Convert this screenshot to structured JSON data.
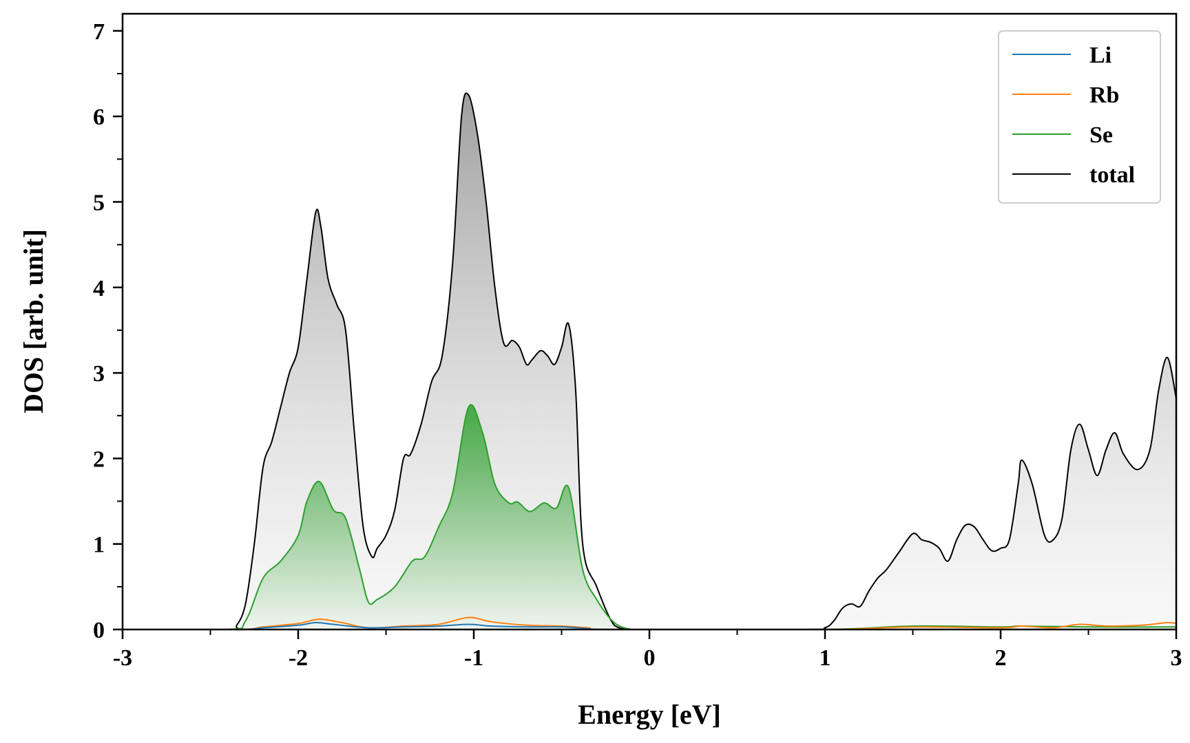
{
  "chart_data": {
    "type": "line",
    "xlabel": "Energy [eV]",
    "ylabel": "DOS [arb. unit]",
    "xlim": [
      -3,
      3
    ],
    "ylim": [
      0,
      7.2
    ],
    "xticks": [
      "-3",
      "-2",
      "-1",
      "0",
      "1",
      "2",
      "3"
    ],
    "yticks": [
      "0",
      "1",
      "2",
      "3",
      "4",
      "5",
      "6",
      "7"
    ],
    "grid": false,
    "legend_position": "top-right",
    "series": [
      {
        "name": "Li",
        "color": "#1f77b4",
        "filled": false,
        "x": [
          -3.0,
          -2.35,
          -2.2,
          -2.0,
          -1.9,
          -1.8,
          -1.6,
          -1.4,
          -1.2,
          -1.03,
          -0.9,
          -0.7,
          -0.5,
          -0.35,
          -0.2,
          1.0,
          3.0
        ],
        "y": [
          0,
          0,
          0.02,
          0.05,
          0.08,
          0.06,
          0.02,
          0.03,
          0.04,
          0.06,
          0.04,
          0.03,
          0.03,
          0.01,
          0,
          0,
          0
        ]
      },
      {
        "name": "Rb",
        "color": "#ff7f0e",
        "filled": false,
        "x": [
          -3.0,
          -2.35,
          -2.2,
          -2.0,
          -1.88,
          -1.75,
          -1.6,
          -1.4,
          -1.2,
          -1.03,
          -0.9,
          -0.7,
          -0.5,
          -0.35,
          -0.2,
          1.0,
          1.5,
          2.0,
          2.12,
          2.3,
          2.45,
          2.6,
          2.8,
          2.95,
          3.0
        ],
        "y": [
          0,
          0,
          0.03,
          0.07,
          0.12,
          0.08,
          0.02,
          0.04,
          0.06,
          0.14,
          0.09,
          0.05,
          0.04,
          0.02,
          0,
          0,
          0.03,
          0.02,
          0.04,
          0.02,
          0.06,
          0.04,
          0.05,
          0.08,
          0.07
        ]
      },
      {
        "name": "Se",
        "color": "#2ca02c",
        "filled": true,
        "x": [
          -3.0,
          -2.4,
          -2.3,
          -2.2,
          -2.1,
          -2.0,
          -1.95,
          -1.88,
          -1.8,
          -1.73,
          -1.65,
          -1.6,
          -1.55,
          -1.45,
          -1.35,
          -1.28,
          -1.2,
          -1.12,
          -1.03,
          -0.95,
          -0.88,
          -0.8,
          -0.75,
          -0.68,
          -0.6,
          -0.53,
          -0.46,
          -0.38,
          -0.3,
          -0.2,
          -0.1,
          0.0,
          1.0,
          1.5,
          2.0,
          2.12,
          2.5,
          3.0
        ],
        "y": [
          0,
          0,
          0.1,
          0.6,
          0.8,
          1.1,
          1.5,
          1.73,
          1.4,
          1.3,
          0.7,
          0.32,
          0.35,
          0.5,
          0.8,
          0.85,
          1.2,
          1.6,
          2.6,
          2.3,
          1.7,
          1.48,
          1.49,
          1.38,
          1.48,
          1.42,
          1.66,
          0.7,
          0.35,
          0.08,
          0,
          0,
          0,
          0.04,
          0.03,
          0.04,
          0.03,
          0.03
        ]
      },
      {
        "name": "total",
        "color": "#000000",
        "filled": true,
        "x": [
          -3.0,
          -2.4,
          -2.35,
          -2.3,
          -2.25,
          -2.2,
          -2.15,
          -2.1,
          -2.05,
          -2.0,
          -1.95,
          -1.9,
          -1.87,
          -1.83,
          -1.78,
          -1.73,
          -1.68,
          -1.63,
          -1.58,
          -1.55,
          -1.5,
          -1.45,
          -1.4,
          -1.36,
          -1.3,
          -1.24,
          -1.18,
          -1.12,
          -1.07,
          -1.03,
          -0.98,
          -0.93,
          -0.88,
          -0.83,
          -0.78,
          -0.74,
          -0.7,
          -0.67,
          -0.62,
          -0.58,
          -0.54,
          -0.5,
          -0.46,
          -0.42,
          -0.38,
          -0.3,
          -0.2,
          -0.1,
          0.0,
          0.9,
          1.0,
          1.05,
          1.1,
          1.15,
          1.2,
          1.25,
          1.3,
          1.35,
          1.42,
          1.5,
          1.55,
          1.6,
          1.65,
          1.7,
          1.75,
          1.8,
          1.85,
          1.9,
          1.95,
          2.0,
          2.05,
          2.1,
          2.12,
          2.18,
          2.25,
          2.3,
          2.35,
          2.4,
          2.45,
          2.5,
          2.55,
          2.6,
          2.65,
          2.7,
          2.78,
          2.85,
          2.9,
          2.95,
          3.0
        ],
        "y": [
          0,
          0,
          0.05,
          0.3,
          1.0,
          1.9,
          2.2,
          2.6,
          3.0,
          3.3,
          4.1,
          4.88,
          4.7,
          4.1,
          3.8,
          3.5,
          2.3,
          1.2,
          0.85,
          0.95,
          1.1,
          1.4,
          2.0,
          2.05,
          2.4,
          2.9,
          3.2,
          4.3,
          6.0,
          6.25,
          5.8,
          5.0,
          4.0,
          3.35,
          3.38,
          3.3,
          3.1,
          3.15,
          3.26,
          3.2,
          3.1,
          3.3,
          3.57,
          2.8,
          1.0,
          0.5,
          0.05,
          0,
          0,
          0,
          0.02,
          0.1,
          0.25,
          0.3,
          0.27,
          0.45,
          0.6,
          0.7,
          0.9,
          1.12,
          1.05,
          1.02,
          0.95,
          0.8,
          1.05,
          1.22,
          1.2,
          1.05,
          0.92,
          0.95,
          1.05,
          1.7,
          1.98,
          1.7,
          1.1,
          1.05,
          1.3,
          2.1,
          2.4,
          2.1,
          1.8,
          2.1,
          2.3,
          2.05,
          1.87,
          2.1,
          2.8,
          3.18,
          2.7
        ]
      }
    ]
  }
}
